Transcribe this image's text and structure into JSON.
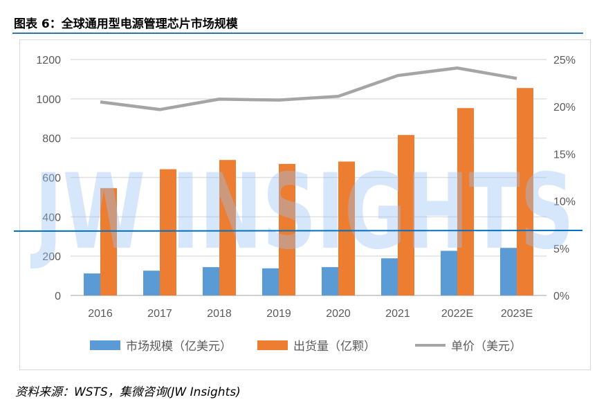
{
  "title": "图表 6：全球通用型电源管理芯片市场规模",
  "source": "资料来源：WSTS，集微咨询(JW Insights)",
  "watermark": "JW INSIGHTS",
  "chart_data": {
    "type": "bar",
    "categories": [
      "2016",
      "2017",
      "2018",
      "2019",
      "2020",
      "2021",
      "2022E",
      "2023E"
    ],
    "series": [
      {
        "name": "市场规模（亿美元）",
        "type": "bar",
        "axis": "left",
        "color": "#5B9BD5",
        "values": [
          112,
          126,
          144,
          138,
          144,
          189,
          227,
          242
        ]
      },
      {
        "name": "出货量（亿颗）",
        "type": "bar",
        "axis": "left",
        "color": "#ED7D31",
        "values": [
          546,
          642,
          689,
          669,
          681,
          816,
          953,
          1055
        ]
      },
      {
        "name": "单价（美元）",
        "type": "line",
        "axis": "right",
        "color": "#A5A5A5",
        "values": [
          20.5,
          19.7,
          20.8,
          20.7,
          21.1,
          23.3,
          24.1,
          23.0
        ]
      }
    ],
    "ylim": [
      0,
      1200
    ],
    "yticks": [
      "0",
      "200",
      "400",
      "600",
      "800",
      "1000",
      "1200"
    ],
    "y2lim": [
      0,
      25
    ],
    "y2ticks": [
      "0%",
      "5%",
      "10%",
      "15%",
      "20%",
      "25%"
    ],
    "grid": true,
    "legend": "bottom"
  }
}
